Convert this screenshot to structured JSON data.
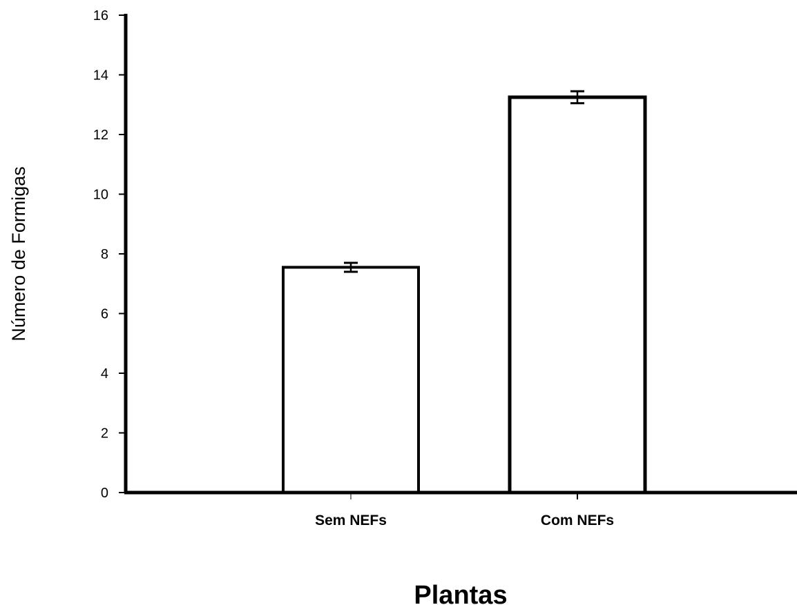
{
  "chart_data": {
    "type": "bar",
    "categories": [
      "Sem NEFs",
      "Com NEFs"
    ],
    "values": [
      7.55,
      13.25
    ],
    "error": [
      0.15,
      0.2
    ],
    "xlabel": "Plantas",
    "ylabel": "Número de Formigas",
    "ylim": [
      0,
      16
    ],
    "yticks": [
      "0",
      "2",
      "4",
      "6",
      "8",
      "10",
      "12",
      "14",
      "16"
    ],
    "grid": false,
    "legend": "none"
  }
}
